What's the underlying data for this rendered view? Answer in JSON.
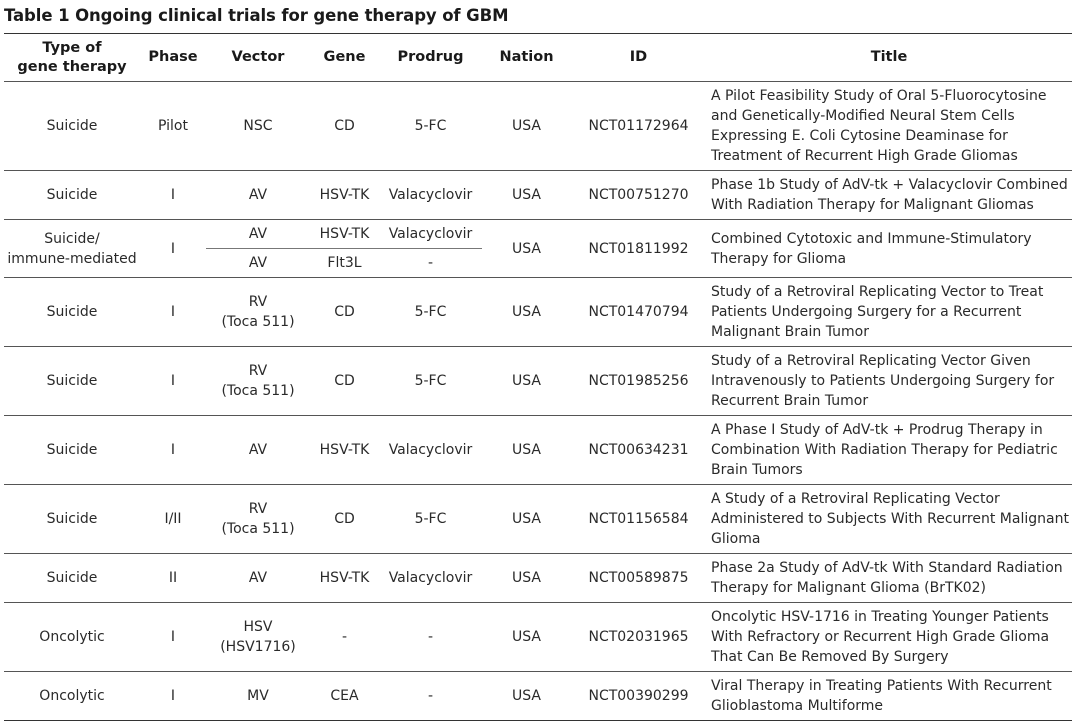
{
  "caption": "Table 1 Ongoing clinical trials for gene therapy of GBM",
  "headers": {
    "type": "Type of gene therapy",
    "type_line1": "Type of",
    "type_line2": "gene therapy",
    "phase": "Phase",
    "vector": "Vector",
    "gene": "Gene",
    "prodrug": "Prodrug",
    "nation": "Nation",
    "id": "ID",
    "title": "Title"
  },
  "rows": [
    {
      "type": "Suicide",
      "phase": "Pilot",
      "vector": "NSC",
      "vector2": "",
      "gene": "CD",
      "prodrug": "5-FC",
      "nation": "USA",
      "id": "NCT01172964",
      "title": "A Pilot Feasibility Study of Oral 5-Fluorocytosine and Genetically-Modified Neural Stem Cells Expressing E. Coli Cytosine Deaminase for Treatment of Recurrent High Grade Gliomas"
    },
    {
      "type": "Suicide",
      "phase": "I",
      "vector": "AV",
      "vector2": "",
      "gene": "HSV-TK",
      "prodrug": "Valacyclovir",
      "nation": "USA",
      "id": "NCT00751270",
      "title": "Phase 1b Study of AdV-tk + Valacyclovir Combined With Radiation Therapy for Malignant Gliomas"
    },
    {
      "type": "Suicide/",
      "type2": "immune-mediated",
      "phase": "I",
      "sub": [
        {
          "vector": "AV",
          "gene": "HSV-TK",
          "prodrug": "Valacyclovir"
        },
        {
          "vector": "AV",
          "gene": "Flt3L",
          "prodrug": "-"
        }
      ],
      "nation": "USA",
      "id": "NCT01811992",
      "title": "Combined Cytotoxic and Immune-Stimulatory Therapy for Glioma"
    },
    {
      "type": "Suicide",
      "phase": "I",
      "vector": "RV",
      "vector2": "(Toca 511)",
      "gene": "CD",
      "prodrug": "5-FC",
      "nation": "USA",
      "id": "NCT01470794",
      "title": "Study of a Retroviral Replicating Vector to Treat Patients Undergoing Surgery for a Recurrent Malignant Brain Tumor"
    },
    {
      "type": "Suicide",
      "phase": "I",
      "vector": "RV",
      "vector2": "(Toca 511)",
      "gene": "CD",
      "prodrug": "5-FC",
      "nation": "USA",
      "id": "NCT01985256",
      "title": "Study of a Retroviral Replicating Vector Given Intravenously to Patients Undergoing Surgery for Recurrent Brain Tumor"
    },
    {
      "type": "Suicide",
      "phase": "I",
      "vector": "AV",
      "vector2": "",
      "gene": "HSV-TK",
      "prodrug": "Valacyclovir",
      "nation": "USA",
      "id": "NCT00634231",
      "title": "A Phase I Study of AdV-tk + Prodrug Therapy in Combination With Radiation Therapy for Pediatric Brain Tumors"
    },
    {
      "type": "Suicide",
      "phase": "I/II",
      "vector": "RV",
      "vector2": "(Toca 511)",
      "gene": "CD",
      "prodrug": "5-FC",
      "nation": "USA",
      "id": "NCT01156584",
      "title": "A Study of a Retroviral Replicating Vector Administered to Subjects With Recurrent Malignant Glioma"
    },
    {
      "type": "Suicide",
      "phase": "II",
      "vector": "AV",
      "vector2": "",
      "gene": "HSV-TK",
      "prodrug": "Valacyclovir",
      "nation": "USA",
      "id": "NCT00589875",
      "title": "Phase 2a Study of AdV-tk With Standard Radiation Therapy for Malignant Glioma (BrTK02)"
    },
    {
      "type": "Oncolytic",
      "phase": "I",
      "vector": "HSV",
      "vector2": "(HSV1716)",
      "gene": "-",
      "prodrug": "-",
      "nation": "USA",
      "id": "NCT02031965",
      "title": "Oncolytic HSV-1716 in Treating Younger Patients With Refractory or Recurrent High Grade Glioma That Can Be Removed By Surgery"
    },
    {
      "type": "Oncolytic",
      "phase": "I",
      "vector": "MV",
      "vector2": "",
      "gene": "CEA",
      "prodrug": "-",
      "nation": "USA",
      "id": "NCT00390299",
      "title": "Viral Therapy in Treating Patients With Recurrent Glioblastoma Multiforme"
    }
  ]
}
